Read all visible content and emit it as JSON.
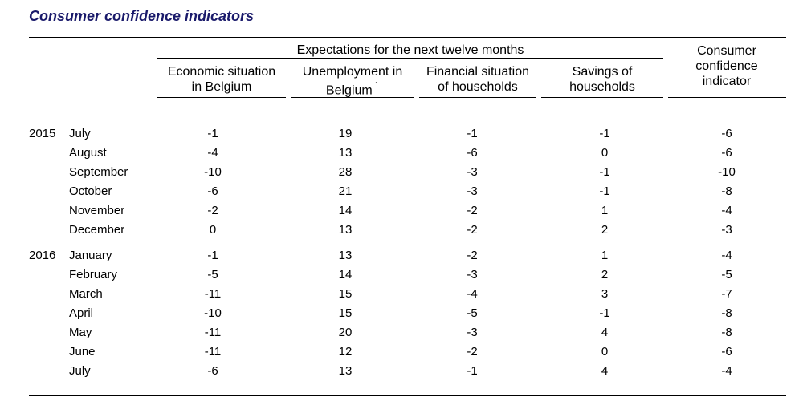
{
  "title": "Consumer confidence indicators",
  "header": {
    "group_label": "Expectations for the next twelve months",
    "columns": [
      {
        "lines": [
          "Economic situation",
          "in Belgium"
        ]
      },
      {
        "lines": [
          "Unemployment in",
          "Belgium"
        ],
        "footnote": "1"
      },
      {
        "lines": [
          "Financial situation",
          "of households"
        ]
      },
      {
        "lines": [
          "Savings of",
          "households"
        ]
      },
      {
        "lines": [
          "Consumer",
          "confidence",
          "indicator"
        ]
      }
    ]
  },
  "rows": [
    {
      "year": "2015",
      "month": "July",
      "values": [
        "-1",
        "19",
        "-1",
        "-1",
        "-6"
      ]
    },
    {
      "year": "",
      "month": "August",
      "values": [
        "-4",
        "13",
        "-6",
        "0",
        "-6"
      ]
    },
    {
      "year": "",
      "month": "September",
      "values": [
        "-10",
        "28",
        "-3",
        "-1",
        "-10"
      ]
    },
    {
      "year": "",
      "month": "October",
      "values": [
        "-6",
        "21",
        "-3",
        "-1",
        "-8"
      ]
    },
    {
      "year": "",
      "month": "November",
      "values": [
        "-2",
        "14",
        "-2",
        "1",
        "-4"
      ]
    },
    {
      "year": "",
      "month": "December",
      "values": [
        "0",
        "13",
        "-2",
        "2",
        "-3"
      ]
    },
    {
      "year": "2016",
      "month": "January",
      "values": [
        "-1",
        "13",
        "-2",
        "1",
        "-4"
      ]
    },
    {
      "year": "",
      "month": "February",
      "values": [
        "-5",
        "14",
        "-3",
        "2",
        "-5"
      ]
    },
    {
      "year": "",
      "month": "March",
      "values": [
        "-11",
        "15",
        "-4",
        "3",
        "-7"
      ]
    },
    {
      "year": "",
      "month": "April",
      "values": [
        "-10",
        "15",
        "-5",
        "-1",
        "-8"
      ]
    },
    {
      "year": "",
      "month": "May",
      "values": [
        "-11",
        "20",
        "-3",
        "4",
        "-8"
      ]
    },
    {
      "year": "",
      "month": "June",
      "values": [
        "-11",
        "12",
        "-2",
        "0",
        "-6"
      ]
    },
    {
      "year": "",
      "month": "July",
      "values": [
        "-6",
        "13",
        "-1",
        "4",
        "-4"
      ]
    }
  ]
}
